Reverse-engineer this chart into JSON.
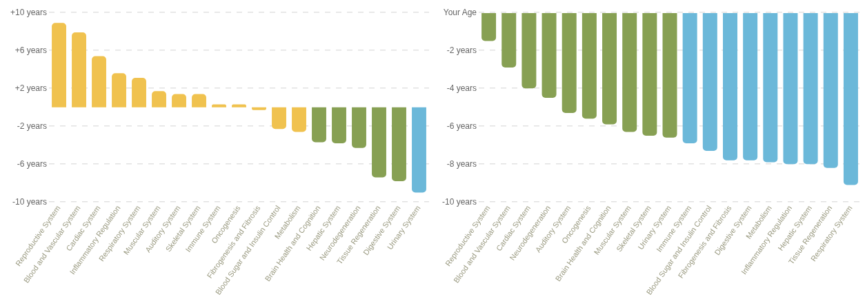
{
  "chart_data": [
    {
      "type": "bar",
      "categories": [
        "Reproductive System",
        "Blood and Vascular System",
        "Cardiac System",
        "Inflammatory Regulation",
        "Respiratory System",
        "Muscular System",
        "Auditory System",
        "Skeletal System",
        "Immune System",
        "Oncogenesis",
        "Fibrogenesis and Fibrosis",
        "Blood Sugar and Insulin Control",
        "Metabolism",
        "Brain Health and Cognition",
        "Hepatic System",
        "Neurodegeneration",
        "Tissue Regeneration",
        "Digestive System",
        "Urinary System"
      ],
      "values": [
        8.9,
        7.9,
        5.4,
        3.6,
        3.1,
        1.7,
        1.4,
        1.4,
        0.3,
        0.3,
        -0.3,
        -2.3,
        -2.6,
        -3.7,
        -3.8,
        -4.3,
        -7.4,
        -7.8,
        -9
      ],
      "colors": [
        "#f0c24f",
        "#f0c24f",
        "#f0c24f",
        "#f0c24f",
        "#f0c24f",
        "#f0c24f",
        "#f0c24f",
        "#f0c24f",
        "#f0c24f",
        "#f0c24f",
        "#f0c24f",
        "#f0c24f",
        "#f0c24f",
        "#87a053",
        "#87a053",
        "#87a053",
        "#87a053",
        "#87a053",
        "#6bb8d9"
      ],
      "ylim": [
        -10,
        10
      ],
      "yticks": [
        {
          "value": 10,
          "label": "+10 years"
        },
        {
          "value": 6,
          "label": "+6 years"
        },
        {
          "value": 2,
          "label": "+2 years"
        },
        {
          "value": -2,
          "label": "-2 years"
        },
        {
          "value": -6,
          "label": "-6 years"
        },
        {
          "value": -10,
          "label": "-10 years"
        }
      ],
      "grid": "y"
    },
    {
      "type": "bar",
      "categories": [
        "Reproductive System",
        "Blood and Vascular System",
        "Cardiac System",
        "Neurodegeneration",
        "Auditory System",
        "Oncogenesis",
        "Brain Health and Cognition",
        "Muscular System",
        "Skeletal System",
        "Urinary System",
        "Immune System",
        "Blood Sugar and Insulin Control",
        "Fibrogenesis and Fibrosis",
        "Digestive System",
        "Metabolism",
        "Inflammatory Regulation",
        "Hepatic System",
        "Tissue Regeneration",
        "Respiratory System"
      ],
      "values": [
        -1.5,
        -2.9,
        -4,
        -4.5,
        -5.3,
        -5.6,
        -5.9,
        -6.3,
        -6.5,
        -6.6,
        -6.9,
        -7.3,
        -7.8,
        -7.8,
        -7.9,
        -8,
        -8,
        -8.2,
        -9.1
      ],
      "colors": [
        "#87a053",
        "#87a053",
        "#87a053",
        "#87a053",
        "#87a053",
        "#87a053",
        "#87a053",
        "#87a053",
        "#87a053",
        "#87a053",
        "#6bb8d9",
        "#6bb8d9",
        "#6bb8d9",
        "#6bb8d9",
        "#6bb8d9",
        "#6bb8d9",
        "#6bb8d9",
        "#6bb8d9",
        "#6bb8d9"
      ],
      "ylim": [
        -10,
        0
      ],
      "yticks": [
        {
          "value": 0,
          "label": "Your Age"
        },
        {
          "value": -2,
          "label": "-2 years"
        },
        {
          "value": -4,
          "label": "-4 years"
        },
        {
          "value": -6,
          "label": "-6 years"
        },
        {
          "value": -8,
          "label": "-8 years"
        },
        {
          "value": -10,
          "label": "-10 years"
        }
      ],
      "grid": "y"
    }
  ]
}
